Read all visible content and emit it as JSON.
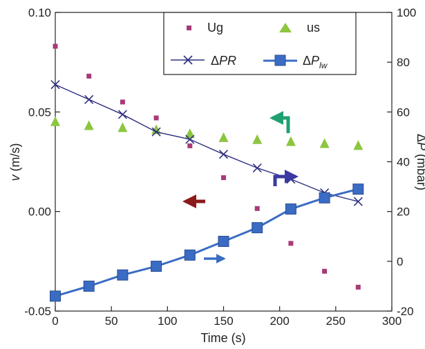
{
  "chart_data": {
    "type": "scatter",
    "xlabel": "Time (s)",
    "ylabel_left": {
      "var": "v",
      "unit": " (m/s)"
    },
    "ylabel_right": {
      "var": "ΔP",
      "unit": " (mbar)"
    },
    "xlim": [
      0,
      300
    ],
    "ylim_left": [
      -0.05,
      0.1
    ],
    "ylim_right": [
      -20,
      100
    ],
    "x_ticks": [
      "0",
      "50",
      "100",
      "150",
      "200",
      "250",
      "300"
    ],
    "y_left_ticks": [
      "-0.05",
      "0.00",
      "0.05",
      "0.10"
    ],
    "y_right_ticks": [
      "-20",
      "0",
      "20",
      "40",
      "60",
      "80",
      "100"
    ],
    "grid": false,
    "legend_position": "top-center",
    "series": [
      {
        "name": "Ug",
        "axis": "left",
        "marker": "small-square",
        "color": "#a83a78",
        "x": [
          0,
          30,
          60,
          90,
          120,
          150,
          180,
          210,
          240,
          270
        ],
        "y": [
          0.083,
          0.068,
          0.055,
          0.047,
          0.033,
          0.017,
          0.0015,
          -0.016,
          -0.03,
          -0.038
        ]
      },
      {
        "name": "us",
        "axis": "left",
        "marker": "triangle",
        "color": "#8cc63f",
        "x": [
          0,
          30,
          60,
          90,
          120,
          150,
          180,
          210,
          240,
          270
        ],
        "y": [
          0.045,
          0.043,
          0.042,
          0.041,
          0.039,
          0.037,
          0.036,
          0.035,
          0.034,
          0.033
        ]
      },
      {
        "name": "ΔPR",
        "axis": "right",
        "marker": "x-line",
        "color": "#2e2e80",
        "x": [
          0,
          30,
          60,
          90,
          120,
          150,
          180,
          210,
          240,
          270
        ],
        "y": [
          71,
          65,
          59,
          52,
          49,
          43,
          37.5,
          33,
          27.5,
          24
        ]
      },
      {
        "name": "ΔPlw",
        "axis": "right",
        "marker": "big-square-line",
        "color": "#3a6cc4",
        "x": [
          0,
          30,
          60,
          90,
          120,
          150,
          180,
          210,
          240,
          270
        ],
        "y": [
          -14,
          -10,
          -5.5,
          -2,
          2.5,
          8,
          13.5,
          21,
          25.5,
          29
        ]
      }
    ],
    "legend": {
      "entries": [
        {
          "text": "Ug"
        },
        {
          "text": "us"
        },
        {
          "text": "ΔPR",
          "prefix": "Δ",
          "main": "PR",
          "sub": ""
        },
        {
          "text": "ΔPlw",
          "prefix": "Δ",
          "main": "P",
          "sub": "lw"
        }
      ]
    },
    "annotations": [
      {
        "type": "arrow",
        "direction": "left",
        "color": "#8b1a1a",
        "meaning": "points to left axis"
      },
      {
        "type": "arrow",
        "direction": "up-left",
        "color": "#20a070",
        "meaning": "points to left axis"
      },
      {
        "type": "arrow",
        "direction": "up-right",
        "color": "#3a3aa0",
        "meaning": "points to right axis"
      },
      {
        "type": "arrow",
        "direction": "right",
        "color": "#3a6cc4",
        "meaning": "points to right axis"
      }
    ]
  }
}
